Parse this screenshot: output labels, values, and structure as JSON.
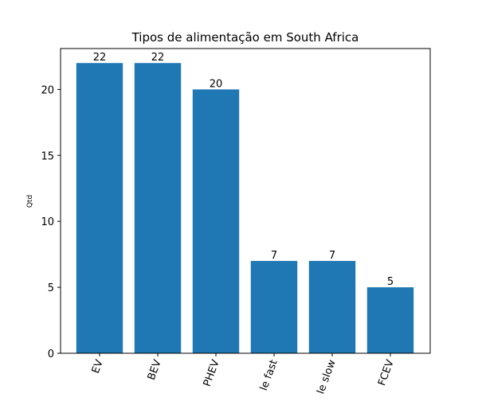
{
  "chart_data": {
    "type": "bar",
    "title": "Tipos de alimentação em South Africa",
    "ylabel": "Qtd",
    "categories": [
      "EV",
      "BEV",
      "PHEV",
      "le fast",
      "le slow",
      "FCEV"
    ],
    "values": [
      22,
      22,
      20,
      7,
      7,
      5
    ],
    "color": "#1f77b4",
    "ylim": [
      0,
      23.1
    ],
    "yticks": [
      0,
      5,
      10,
      15,
      20
    ]
  }
}
